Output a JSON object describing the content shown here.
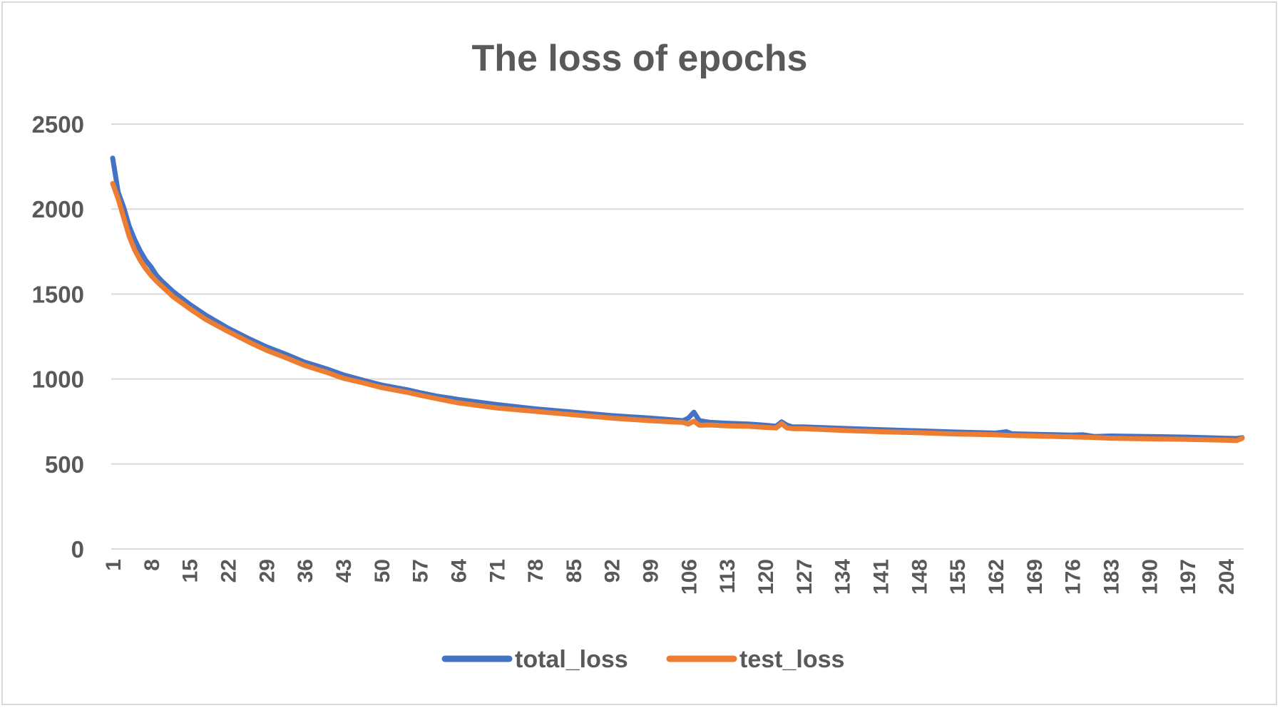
{
  "chart_data": {
    "type": "line",
    "title": "The loss of epochs",
    "xlabel": "",
    "ylabel": "",
    "ylim": [
      0,
      2500
    ],
    "y_ticks": [
      0,
      500,
      1000,
      1500,
      2000,
      2500
    ],
    "x_range": [
      1,
      207
    ],
    "x_tick_labels": [
      "1",
      "8",
      "15",
      "22",
      "29",
      "36",
      "43",
      "50",
      "57",
      "64",
      "71",
      "78",
      "85",
      "92",
      "99",
      "106",
      "113",
      "120",
      "127",
      "134",
      "141",
      "148",
      "155",
      "162",
      "169",
      "176",
      "183",
      "190",
      "197",
      "204"
    ],
    "grid": true,
    "legend_position": "bottom",
    "series": [
      {
        "name": "total_loss",
        "color": "#4472C4",
        "x": [
          1,
          2,
          3,
          4,
          5,
          6,
          7,
          8,
          9,
          10,
          12,
          15,
          18,
          22,
          26,
          29,
          33,
          36,
          40,
          43,
          47,
          50,
          55,
          57,
          60,
          64,
          71,
          78,
          85,
          92,
          99,
          103,
          105,
          106,
          107,
          108,
          110,
          113,
          117,
          120,
          122,
          123,
          124,
          125,
          127,
          134,
          141,
          148,
          155,
          162,
          164,
          165,
          169,
          176,
          178,
          180,
          183,
          190,
          197,
          204,
          206,
          207
        ],
        "values": [
          2300,
          2100,
          2010,
          1900,
          1820,
          1755,
          1700,
          1660,
          1610,
          1575,
          1515,
          1440,
          1375,
          1300,
          1235,
          1190,
          1140,
          1100,
          1060,
          1025,
          990,
          965,
          935,
          920,
          900,
          880,
          850,
          825,
          805,
          785,
          770,
          760,
          755,
          770,
          805,
          755,
          745,
          740,
          735,
          728,
          722,
          748,
          728,
          718,
          718,
          710,
          702,
          695,
          688,
          682,
          690,
          678,
          675,
          670,
          672,
          662,
          665,
          662,
          658,
          652,
          650,
          655
        ]
      },
      {
        "name": "test_loss",
        "color": "#ED7D31",
        "x": [
          1,
          2,
          3,
          4,
          5,
          6,
          7,
          8,
          9,
          10,
          12,
          15,
          18,
          22,
          26,
          29,
          33,
          36,
          40,
          43,
          47,
          50,
          55,
          57,
          60,
          64,
          71,
          78,
          85,
          92,
          99,
          103,
          105,
          106,
          107,
          108,
          110,
          113,
          117,
          120,
          122,
          123,
          124,
          125,
          127,
          134,
          141,
          148,
          155,
          162,
          165,
          169,
          176,
          180,
          183,
          190,
          197,
          204,
          206,
          207
        ],
        "values": [
          2150,
          2060,
          1950,
          1840,
          1760,
          1700,
          1650,
          1610,
          1575,
          1545,
          1485,
          1415,
          1350,
          1280,
          1215,
          1170,
          1120,
          1080,
          1040,
          1005,
          975,
          950,
          920,
          905,
          885,
          860,
          830,
          810,
          790,
          770,
          755,
          748,
          745,
          735,
          752,
          728,
          730,
          725,
          722,
          715,
          712,
          738,
          712,
          708,
          708,
          698,
          690,
          684,
          676,
          672,
          668,
          665,
          660,
          656,
          652,
          648,
          645,
          640,
          638,
          652
        ]
      }
    ]
  }
}
